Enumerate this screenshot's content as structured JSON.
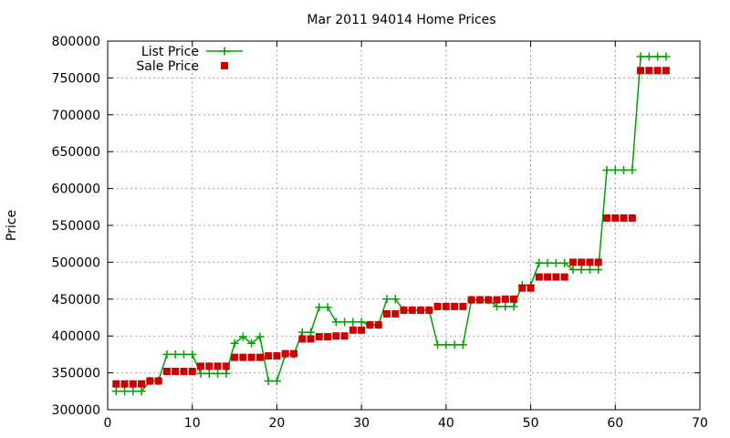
{
  "chart_data": {
    "type": "line",
    "title": "Mar 2011 94014 Home Prices",
    "ylabel": "Price",
    "xlabel": "",
    "xlim": [
      0,
      70
    ],
    "ylim": [
      300000,
      800000
    ],
    "x_ticks": [
      0,
      10,
      20,
      30,
      40,
      50,
      60,
      70
    ],
    "y_ticks": [
      300000,
      350000,
      400000,
      450000,
      500000,
      550000,
      600000,
      650000,
      700000,
      750000,
      800000
    ],
    "grid": true,
    "legend_position": "top-left",
    "series": [
      {
        "name": "List Price",
        "style": "line-plus",
        "color": "#00a000",
        "x": [
          1,
          2,
          3,
          4,
          5,
          6,
          7,
          8,
          9,
          10,
          11,
          12,
          13,
          14,
          15,
          16,
          17,
          18,
          19,
          20,
          21,
          22,
          23,
          24,
          25,
          26,
          27,
          28,
          29,
          30,
          31,
          32,
          33,
          34,
          35,
          36,
          37,
          38,
          39,
          40,
          41,
          42,
          43,
          44,
          45,
          46,
          47,
          48,
          49,
          50,
          51,
          52,
          53,
          54,
          55,
          56,
          57,
          58,
          59,
          60,
          61,
          62,
          63,
          64,
          65,
          66
        ],
        "y": [
          325000,
          325000,
          325000,
          325000,
          339000,
          339000,
          375000,
          375000,
          375000,
          375000,
          349000,
          349000,
          349000,
          349000,
          390000,
          399000,
          390000,
          399000,
          339000,
          339000,
          375000,
          375000,
          405000,
          405000,
          439000,
          439000,
          419000,
          419000,
          419000,
          419000,
          415000,
          415000,
          450000,
          450000,
          435000,
          435000,
          435000,
          435000,
          388000,
          388000,
          388000,
          388000,
          449000,
          449000,
          449000,
          440000,
          440000,
          440000,
          469000,
          469000,
          499000,
          499000,
          499000,
          499000,
          490000,
          490000,
          490000,
          490000,
          625000,
          625000,
          625000,
          625000,
          779000,
          779000,
          779000,
          779000
        ]
      },
      {
        "name": "Sale Price",
        "style": "points-square",
        "color": "#cc0000",
        "x": [
          1,
          2,
          3,
          4,
          5,
          6,
          7,
          8,
          9,
          10,
          11,
          12,
          13,
          14,
          15,
          16,
          17,
          18,
          19,
          20,
          21,
          22,
          23,
          24,
          25,
          26,
          27,
          28,
          29,
          30,
          31,
          32,
          33,
          34,
          35,
          36,
          37,
          38,
          39,
          40,
          41,
          42,
          43,
          44,
          45,
          46,
          47,
          48,
          49,
          50,
          51,
          52,
          53,
          54,
          55,
          56,
          57,
          58,
          59,
          60,
          61,
          62,
          63,
          64,
          65,
          66
        ],
        "y": [
          335000,
          335000,
          335000,
          335000,
          339000,
          339000,
          352000,
          352000,
          352000,
          352000,
          359000,
          359000,
          359000,
          359000,
          371000,
          371000,
          371000,
          371000,
          373000,
          373000,
          376000,
          376000,
          396000,
          396000,
          399000,
          399000,
          400000,
          400000,
          408000,
          408000,
          415000,
          415000,
          430000,
          430000,
          435000,
          435000,
          435000,
          435000,
          440000,
          440000,
          440000,
          440000,
          449000,
          449000,
          449000,
          449000,
          450000,
          450000,
          465000,
          465000,
          480000,
          480000,
          480000,
          480000,
          500000,
          500000,
          500000,
          500000,
          560000,
          560000,
          560000,
          560000,
          760000,
          760000,
          760000,
          760000
        ]
      }
    ]
  }
}
